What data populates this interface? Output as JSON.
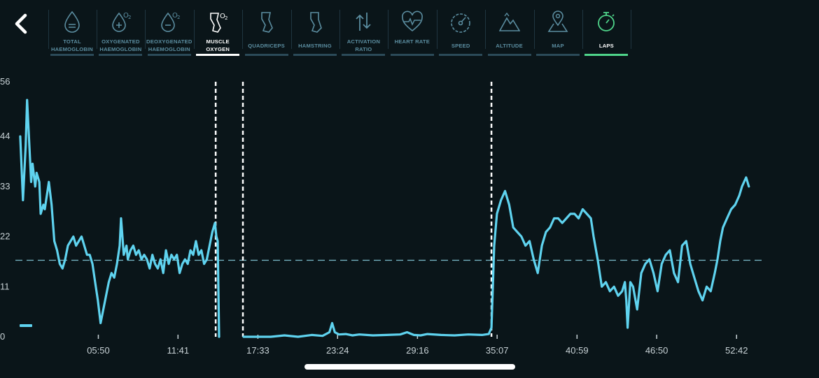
{
  "tabs": [
    {
      "label": "TOTAL HAEMOGLOBIN",
      "icon": "drop-equals-icon",
      "active": false
    },
    {
      "label": "OXYGENATED HAEMOGLOBIN",
      "icon": "drop-plus-o2-icon",
      "active": false
    },
    {
      "label": "DEOXYGENATED HAEMOGLOBIN",
      "icon": "drop-minus-o2-icon",
      "active": false
    },
    {
      "label": "MUSCLE OXYGEN",
      "icon": "leg-o2-icon",
      "active": true
    },
    {
      "label": "QUADRICEPS",
      "icon": "leg-front-icon",
      "active": false
    },
    {
      "label": "HAMSTRING",
      "icon": "leg-back-icon",
      "active": false
    },
    {
      "label": "ACTIVATION RATIO",
      "icon": "up-down-arrows-icon",
      "active": false
    },
    {
      "label": "HEART RATE",
      "icon": "heart-pulse-icon",
      "active": false
    },
    {
      "label": "SPEED",
      "icon": "speedometer-icon",
      "active": false
    },
    {
      "label": "ALTITUDE",
      "icon": "mountain-icon",
      "active": false
    },
    {
      "label": "MAP",
      "icon": "map-pin-icon",
      "active": false
    },
    {
      "label": "LAPS",
      "icon": "stopwatch-icon",
      "active": false,
      "highlight": true
    }
  ],
  "colors": {
    "line": "#5fd3ef",
    "active_underline": "#ffffff",
    "laps_accent": "#4fd48a",
    "inactive_label": "#5b8da0",
    "reference_line": "#8fd8ea",
    "background": "#0a1519"
  },
  "chart_data": {
    "type": "line",
    "title": "",
    "xlabel": "",
    "ylabel": "",
    "ylim": [
      0,
      56
    ],
    "yticks": [
      0,
      11,
      22,
      33,
      44,
      56
    ],
    "xlim_minutes": [
      0,
      55
    ],
    "xticks": [
      {
        "label": "05:50",
        "minutes": 5.833
      },
      {
        "label": "11:41",
        "minutes": 11.683
      },
      {
        "label": "17:33",
        "minutes": 17.55
      },
      {
        "label": "23:24",
        "minutes": 23.4
      },
      {
        "label": "29:16",
        "minutes": 29.267
      },
      {
        "label": "35:07",
        "minutes": 35.117
      },
      {
        "label": "40:59",
        "minutes": 40.983
      },
      {
        "label": "46:50",
        "minutes": 46.833
      },
      {
        "label": "52:42",
        "minutes": 52.7
      }
    ],
    "reference_line": 16.8,
    "lap_markers_minutes": [
      14.45,
      16.45,
      34.7
    ],
    "series": [
      {
        "x": [
          0.1,
          0.3,
          0.5,
          0.6,
          0.8,
          0.9,
          1.0,
          1.2,
          1.3,
          1.5,
          1.6,
          1.8,
          1.9,
          2.0,
          2.2,
          2.4,
          2.6,
          2.8,
          3.0,
          3.2,
          3.4,
          3.6,
          3.8,
          4.0,
          4.2,
          4.4,
          4.6,
          4.8,
          5.0,
          5.2,
          5.4,
          5.6,
          5.8,
          6.0,
          6.2,
          6.4,
          6.6,
          6.8,
          7.0,
          7.2,
          7.4,
          7.5,
          7.6,
          7.7,
          7.8,
          7.9,
          8.0,
          8.2,
          8.4,
          8.6,
          8.8,
          9.0,
          9.2,
          9.4,
          9.6,
          9.8,
          10.0,
          10.2,
          10.4,
          10.6,
          10.8,
          11.0,
          11.2,
          11.4,
          11.6,
          11.8,
          12.0,
          12.2,
          12.4,
          12.6,
          12.8,
          13.0,
          13.2,
          13.4,
          13.6,
          13.8,
          14.0,
          14.2,
          14.4,
          14.5,
          14.6,
          14.7
        ],
        "y": [
          44,
          30,
          42,
          52,
          40,
          34,
          38,
          33,
          36,
          34,
          27,
          29,
          28,
          30,
          34,
          29,
          21,
          19,
          16,
          15,
          17,
          20,
          21,
          22,
          20,
          21,
          22,
          20,
          18,
          18,
          16,
          12,
          8,
          3,
          6,
          9,
          12,
          14,
          13,
          16,
          20,
          26,
          22,
          18,
          19,
          20,
          17,
          19,
          20,
          18,
          19,
          17,
          18,
          17,
          15,
          18,
          16,
          15,
          17,
          14,
          19,
          16,
          18,
          17,
          18,
          14,
          16,
          17,
          16,
          19,
          18,
          21,
          18,
          19,
          16,
          17,
          20,
          23,
          25,
          22,
          21,
          0
        ]
      },
      {
        "x": [
          16.5,
          18.5,
          19.5,
          20.5,
          21.5,
          22.3,
          22.8,
          23.0,
          23.2,
          23.5,
          24.0,
          24.5,
          25.0,
          26.0,
          27.0,
          28.0,
          28.5,
          29.0,
          29.5,
          30.0,
          31.0,
          32.0,
          33.0,
          34.0,
          34.5,
          34.7,
          34.9,
          35.1,
          35.4,
          35.7,
          36.0,
          36.3,
          36.6,
          36.9,
          37.2,
          37.5,
          37.8,
          38.1,
          38.4,
          38.7,
          39.0,
          39.3,
          39.6,
          39.9,
          40.2,
          40.5,
          40.8,
          41.1,
          41.4,
          41.7,
          42.0,
          42.2,
          42.5,
          42.8,
          43.1,
          43.4,
          43.7,
          44.0,
          44.3,
          44.5,
          44.6,
          44.7,
          44.9,
          45.1,
          45.4,
          45.7,
          46.0,
          46.3,
          46.6,
          46.9,
          47.2,
          47.5,
          47.8,
          48.1,
          48.4,
          48.7,
          49.0,
          49.3,
          49.6,
          49.9,
          50.2,
          50.5,
          50.8,
          51.1,
          51.3,
          51.5,
          51.7,
          52.0,
          52.3,
          52.6,
          52.9,
          53.1,
          53.4,
          53.6
        ],
        "y": [
          0,
          0,
          0.3,
          0,
          0.4,
          0.2,
          1,
          3,
          1,
          0.5,
          0.6,
          0.3,
          0.5,
          0.3,
          0.4,
          0.5,
          1,
          0.4,
          0.3,
          0.6,
          0.4,
          0.3,
          0.5,
          0.4,
          0.6,
          2,
          20,
          27,
          30,
          32,
          29,
          24,
          23,
          22,
          20,
          21,
          17,
          14,
          20,
          23,
          24,
          26,
          26,
          25,
          26,
          27,
          27,
          26,
          28,
          27,
          26,
          22,
          17,
          11,
          12,
          10,
          11,
          9,
          10,
          12,
          8,
          2,
          12,
          11,
          6,
          14,
          16,
          17,
          14,
          10,
          16,
          18,
          19,
          14,
          12,
          20,
          21,
          16,
          13,
          10,
          8,
          11,
          10,
          14,
          17,
          21,
          24,
          26,
          28,
          29,
          31,
          33,
          35,
          33
        ]
      }
    ]
  }
}
